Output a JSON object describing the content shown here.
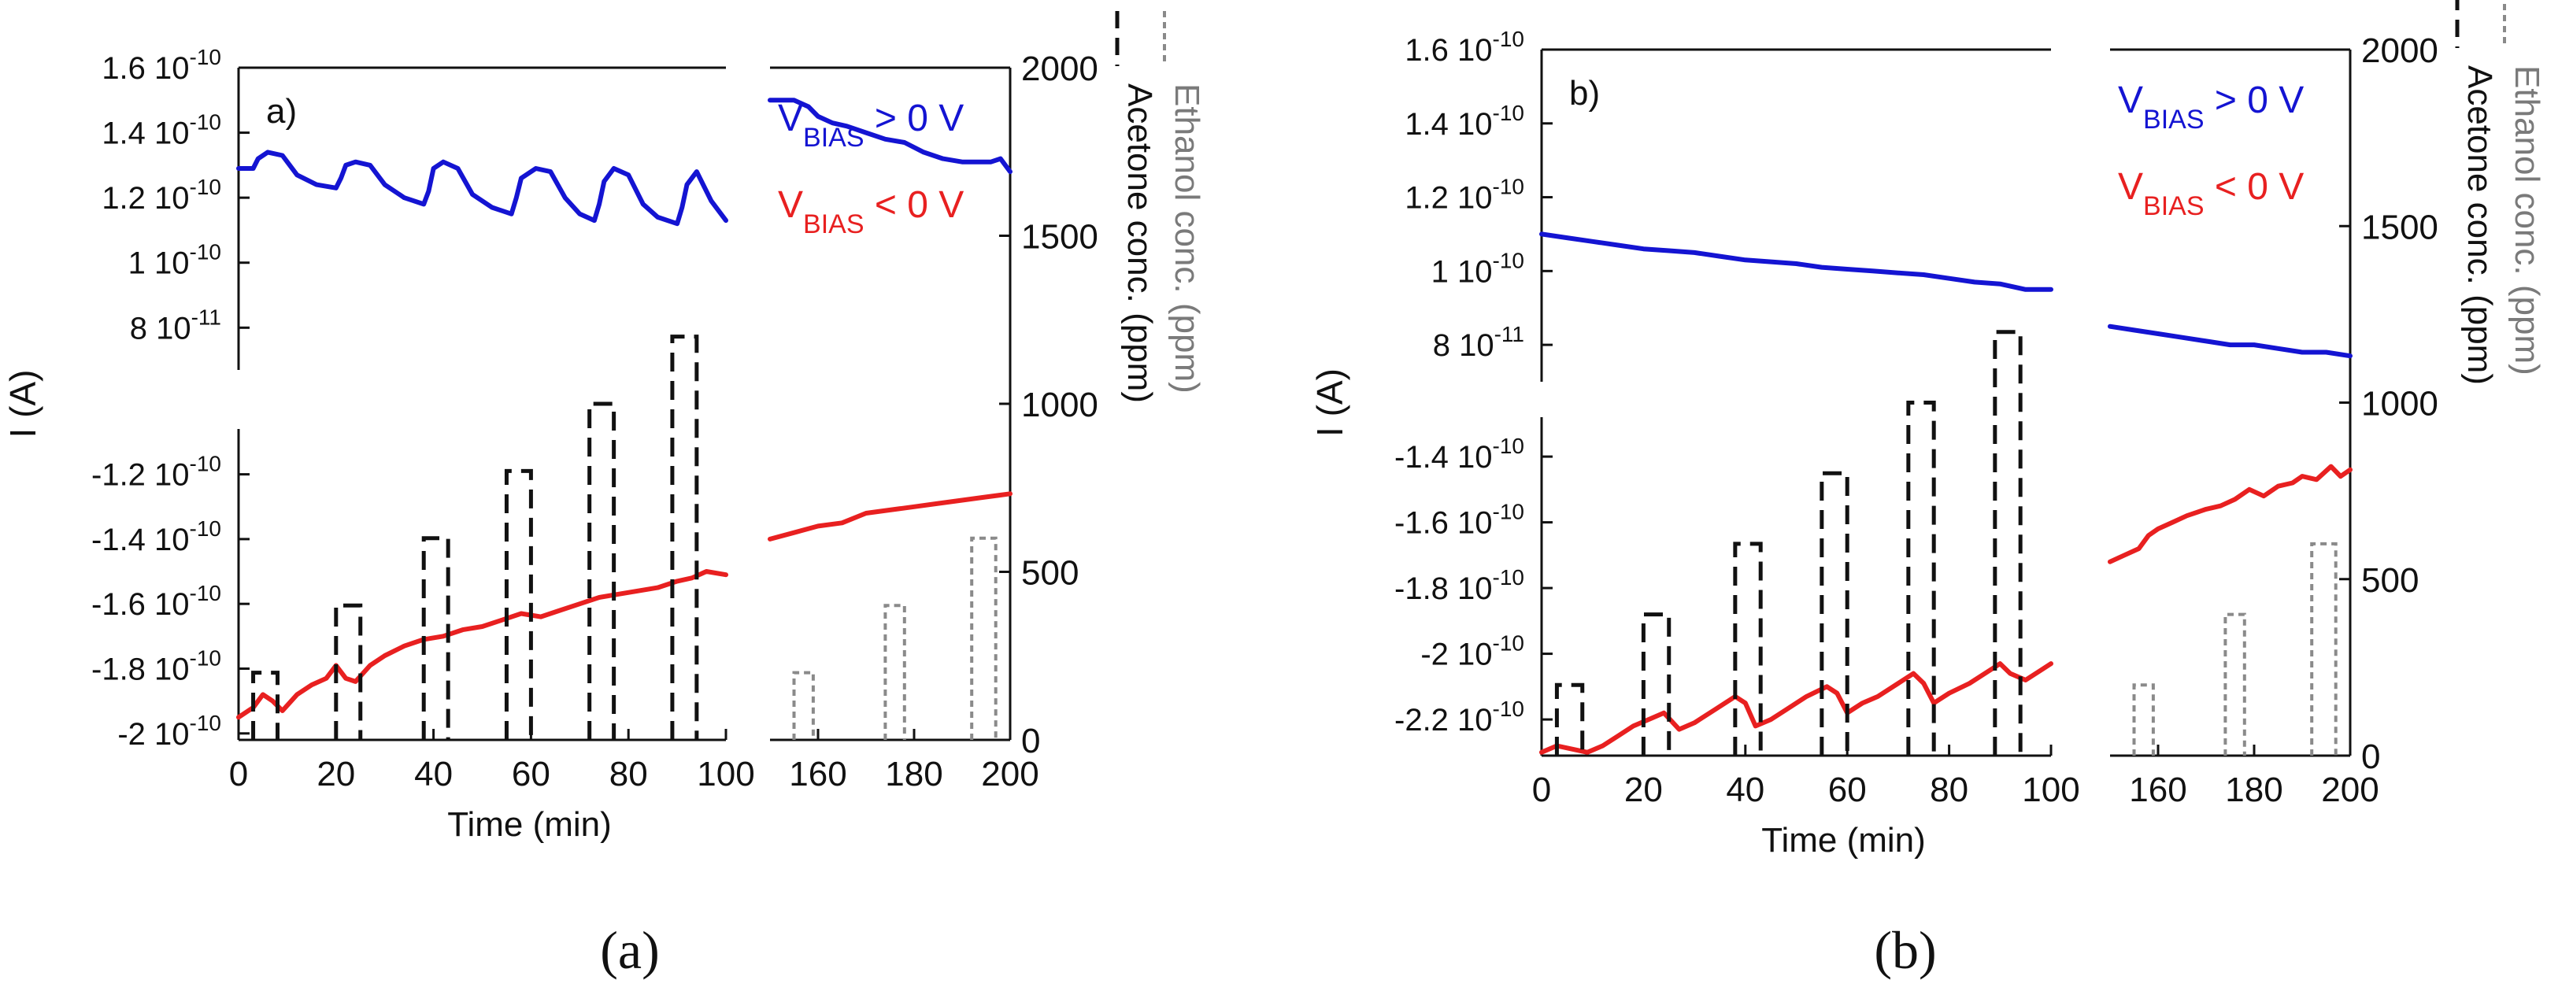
{
  "figure": {
    "captions": [
      "(a)",
      "(b)"
    ]
  },
  "chart_data": [
    {
      "id": "a",
      "type": "line",
      "panel_label": "a)",
      "ylabel": "I (A)",
      "xlabel": "Time (min)",
      "right_axis_labels": [
        "Acetone conc. (ppm)",
        "Ethanol conc. (ppm)"
      ],
      "legend": [
        {
          "main": "V",
          "sub": "BIAS",
          "rest": " > 0 V",
          "color": "#1414d2"
        },
        {
          "main": "V",
          "sub": "BIAS",
          "rest": " < 0 V",
          "color": "#e82020"
        }
      ],
      "colors": {
        "pos": "#1414d2",
        "neg": "#e82020",
        "acetone": "#111111",
        "ethanol": "#8a8a8a"
      },
      "x_left": {
        "range": [
          0,
          100
        ],
        "ticks": [
          "0",
          "20",
          "40",
          "60",
          "80",
          "100"
        ]
      },
      "x_right": {
        "range": [
          150,
          200
        ],
        "ticks": [
          "160",
          "180",
          "200"
        ]
      },
      "y_top": {
        "range": [
          6.7e-11,
          1.6e-10
        ],
        "ticks": [
          {
            "v": 1.6e-10,
            "m": "1.6 10",
            "e": "-10"
          },
          {
            "v": 1.4e-10,
            "m": "1.4 10",
            "e": "-10"
          },
          {
            "v": 1.2e-10,
            "m": "1.2 10",
            "e": "-10"
          },
          {
            "v": 1e-10,
            "m": "1 10",
            "e": "-10"
          },
          {
            "v": 8e-11,
            "m": "8 10",
            "e": "-11"
          }
        ]
      },
      "y_bottom": {
        "range": [
          -2.02e-10,
          -1.06e-10
        ],
        "ticks": [
          {
            "v": -1.2e-10,
            "m": "-1.2 10",
            "e": "-10"
          },
          {
            "v": -1.4e-10,
            "m": "-1.4 10",
            "e": "-10"
          },
          {
            "v": -1.6e-10,
            "m": "-1.6 10",
            "e": "-10"
          },
          {
            "v": -1.8e-10,
            "m": "-1.8 10",
            "e": "-10"
          },
          {
            "v": -2e-10,
            "m": "-2 10",
            "e": "-10"
          }
        ]
      },
      "y_conc": {
        "range": [
          0,
          2000
        ],
        "ticks": [
          "0",
          "500",
          "1000",
          "1500",
          "2000"
        ]
      },
      "series": [
        {
          "name": "V_BIAS > 0 V, acetone",
          "color": "#1414d2",
          "x": [
            0,
            3,
            4,
            6,
            9,
            12,
            16,
            20,
            21,
            22,
            24,
            27,
            30,
            34,
            38,
            39,
            40,
            42,
            45,
            48,
            52,
            56,
            57,
            58,
            61,
            64,
            67,
            70,
            73,
            74,
            75,
            77,
            80,
            83,
            86,
            90,
            91,
            92,
            94,
            97,
            100
          ],
          "y": [
            1.29e-10,
            1.29e-10,
            1.32e-10,
            1.34e-10,
            1.33e-10,
            1.27e-10,
            1.24e-10,
            1.23e-10,
            1.26e-10,
            1.3e-10,
            1.31e-10,
            1.3e-10,
            1.24e-10,
            1.2e-10,
            1.18e-10,
            1.22e-10,
            1.29e-10,
            1.31e-10,
            1.29e-10,
            1.21e-10,
            1.17e-10,
            1.15e-10,
            1.2e-10,
            1.26e-10,
            1.29e-10,
            1.28e-10,
            1.2e-10,
            1.15e-10,
            1.13e-10,
            1.18e-10,
            1.25e-10,
            1.29e-10,
            1.27e-10,
            1.18e-10,
            1.14e-10,
            1.12e-10,
            1.17e-10,
            1.24e-10,
            1.28e-10,
            1.19e-10,
            1.13e-10
          ]
        },
        {
          "name": "V_BIAS < 0 V, acetone",
          "color": "#e82020",
          "x": [
            0,
            3,
            5,
            7,
            9,
            12,
            15,
            18,
            20,
            22,
            24,
            27,
            30,
            34,
            38,
            42,
            46,
            50,
            54,
            58,
            62,
            66,
            70,
            74,
            78,
            82,
            86,
            90,
            93,
            96,
            100
          ],
          "y": [
            -1.95e-10,
            -1.92e-10,
            -1.88e-10,
            -1.9e-10,
            -1.93e-10,
            -1.88e-10,
            -1.85e-10,
            -1.83e-10,
            -1.79e-10,
            -1.83e-10,
            -1.84e-10,
            -1.79e-10,
            -1.76e-10,
            -1.73e-10,
            -1.71e-10,
            -1.7e-10,
            -1.68e-10,
            -1.67e-10,
            -1.65e-10,
            -1.63e-10,
            -1.64e-10,
            -1.62e-10,
            -1.6e-10,
            -1.58e-10,
            -1.57e-10,
            -1.56e-10,
            -1.55e-10,
            -1.53e-10,
            -1.52e-10,
            -1.5e-10,
            -1.51e-10
          ]
        },
        {
          "name": "V_BIAS > 0 V, ethanol",
          "color": "#1414d2",
          "x": [
            150,
            155,
            158,
            160,
            163,
            166,
            170,
            174,
            178,
            182,
            186,
            190,
            193,
            196,
            198,
            200
          ],
          "y": [
            1.5e-10,
            1.5e-10,
            1.48e-10,
            1.45e-10,
            1.43e-10,
            1.42e-10,
            1.4e-10,
            1.38e-10,
            1.37e-10,
            1.34e-10,
            1.32e-10,
            1.31e-10,
            1.31e-10,
            1.31e-10,
            1.32e-10,
            1.28e-10
          ]
        },
        {
          "name": "V_BIAS < 0 V, ethanol",
          "color": "#e82020",
          "x": [
            150,
            155,
            160,
            165,
            170,
            175,
            180,
            185,
            190,
            195,
            200
          ],
          "y": [
            -1.4e-10,
            -1.38e-10,
            -1.36e-10,
            -1.35e-10,
            -1.32e-10,
            -1.31e-10,
            -1.3e-10,
            -1.29e-10,
            -1.28e-10,
            -1.27e-10,
            -1.26e-10
          ]
        },
        {
          "name": "Acetone conc.",
          "color": "#111111",
          "axis": "conc",
          "pulses": [
            {
              "start": 3,
              "end": 8,
              "value": 200
            },
            {
              "start": 20,
              "end": 25,
              "value": 400
            },
            {
              "start": 38,
              "end": 43,
              "value": 600
            },
            {
              "start": 55,
              "end": 60,
              "value": 800
            },
            {
              "start": 72,
              "end": 77,
              "value": 1000
            },
            {
              "start": 89,
              "end": 94,
              "value": 1200
            }
          ]
        },
        {
          "name": "Ethanol conc.",
          "color": "#8a8a8a",
          "axis": "conc",
          "pulses": [
            {
              "start": 155,
              "end": 159,
              "value": 200
            },
            {
              "start": 174,
              "end": 178,
              "value": 400
            },
            {
              "start": 192,
              "end": 197,
              "value": 600
            }
          ]
        }
      ]
    },
    {
      "id": "b",
      "type": "line",
      "panel_label": "b)",
      "ylabel": "I (A)",
      "xlabel": "Time (min)",
      "right_axis_labels": [
        "Acetone conc. (ppm)",
        "Ethanol conc. (ppm)"
      ],
      "legend": [
        {
          "main": "V",
          "sub": "BIAS",
          "rest": " > 0 V",
          "color": "#1414d2"
        },
        {
          "main": "V",
          "sub": "BIAS",
          "rest": " < 0 V",
          "color": "#e82020"
        }
      ],
      "colors": {
        "pos": "#1414d2",
        "neg": "#e82020",
        "acetone": "#111111",
        "ethanol": "#8a8a8a"
      },
      "x_left": {
        "range": [
          0,
          100
        ],
        "ticks": [
          "0",
          "20",
          "40",
          "60",
          "80",
          "100"
        ]
      },
      "x_right": {
        "range": [
          150,
          200
        ],
        "ticks": [
          "160",
          "180",
          "200"
        ]
      },
      "y_top": {
        "range": [
          7e-11,
          1.6e-10
        ],
        "ticks": [
          {
            "v": 1.6e-10,
            "m": "1.6 10",
            "e": "-10"
          },
          {
            "v": 1.4e-10,
            "m": "1.4 10",
            "e": "-10"
          },
          {
            "v": 1.2e-10,
            "m": "1.2 10",
            "e": "-10"
          },
          {
            "v": 1e-10,
            "m": "1 10",
            "e": "-10"
          },
          {
            "v": 8e-11,
            "m": "8 10",
            "e": "-11"
          }
        ]
      },
      "y_bottom": {
        "range": [
          -2.31e-10,
          -1.28e-10
        ],
        "ticks": [
          {
            "v": -1.4e-10,
            "m": "-1.4 10",
            "e": "-10"
          },
          {
            "v": -1.6e-10,
            "m": "-1.6 10",
            "e": "-10"
          },
          {
            "v": -1.8e-10,
            "m": "-1.8 10",
            "e": "-10"
          },
          {
            "v": -2e-10,
            "m": "-2 10",
            "e": "-10"
          },
          {
            "v": -2.2e-10,
            "m": "-2.2 10",
            "e": "-10"
          }
        ]
      },
      "y_conc": {
        "range": [
          0,
          2000
        ],
        "ticks": [
          "0",
          "500",
          "1000",
          "1500",
          "2000"
        ]
      },
      "series": [
        {
          "name": "V_BIAS > 0 V, acetone",
          "color": "#1414d2",
          "x": [
            0,
            5,
            10,
            15,
            20,
            25,
            30,
            35,
            40,
            45,
            50,
            55,
            60,
            65,
            70,
            75,
            80,
            85,
            90,
            95,
            100
          ],
          "y": [
            1.1e-10,
            1.09e-10,
            1.08e-10,
            1.07e-10,
            1.06e-10,
            1.055e-10,
            1.05e-10,
            1.04e-10,
            1.03e-10,
            1.025e-10,
            1.02e-10,
            1.01e-10,
            1.005e-10,
            1e-10,
            9.95e-11,
            9.9e-11,
            9.8e-11,
            9.7e-11,
            9.65e-11,
            9.5e-11,
            9.5e-11
          ]
        },
        {
          "name": "V_BIAS < 0 V, acetone",
          "color": "#e82020",
          "x": [
            0,
            3,
            6,
            9,
            12,
            15,
            18,
            21,
            24,
            27,
            30,
            34,
            38,
            40,
            42,
            45,
            48,
            52,
            56,
            58,
            60,
            63,
            66,
            70,
            73,
            75,
            77,
            80,
            84,
            88,
            90,
            92,
            95,
            98,
            100
          ],
          "y": [
            -2.3e-10,
            -2.28e-10,
            -2.29e-10,
            -2.3e-10,
            -2.28e-10,
            -2.25e-10,
            -2.22e-10,
            -2.2e-10,
            -2.18e-10,
            -2.23e-10,
            -2.21e-10,
            -2.17e-10,
            -2.13e-10,
            -2.15e-10,
            -2.22e-10,
            -2.2e-10,
            -2.17e-10,
            -2.13e-10,
            -2.1e-10,
            -2.12e-10,
            -2.18e-10,
            -2.15e-10,
            -2.13e-10,
            -2.09e-10,
            -2.06e-10,
            -2.09e-10,
            -2.15e-10,
            -2.12e-10,
            -2.09e-10,
            -2.05e-10,
            -2.03e-10,
            -2.06e-10,
            -2.08e-10,
            -2.05e-10,
            -2.03e-10
          ]
        },
        {
          "name": "V_BIAS > 0 V, ethanol",
          "color": "#1414d2",
          "x": [
            150,
            155,
            160,
            165,
            170,
            175,
            180,
            185,
            190,
            195,
            200
          ],
          "y": [
            8.5e-11,
            8.4e-11,
            8.3e-11,
            8.2e-11,
            8.1e-11,
            8e-11,
            8e-11,
            7.9e-11,
            7.8e-11,
            7.8e-11,
            7.7e-11
          ]
        },
        {
          "name": "V_BIAS < 0 V, ethanol",
          "color": "#e82020",
          "x": [
            150,
            153,
            156,
            158,
            160,
            163,
            166,
            170,
            173,
            176,
            179,
            182,
            185,
            188,
            190,
            193,
            196,
            198,
            200
          ],
          "y": [
            -1.72e-10,
            -1.7e-10,
            -1.68e-10,
            -1.64e-10,
            -1.62e-10,
            -1.6e-10,
            -1.58e-10,
            -1.56e-10,
            -1.55e-10,
            -1.53e-10,
            -1.5e-10,
            -1.52e-10,
            -1.49e-10,
            -1.48e-10,
            -1.46e-10,
            -1.47e-10,
            -1.43e-10,
            -1.46e-10,
            -1.44e-10
          ]
        },
        {
          "name": "Acetone conc.",
          "color": "#111111",
          "axis": "conc",
          "pulses": [
            {
              "start": 3,
              "end": 8,
              "value": 200
            },
            {
              "start": 20,
              "end": 25,
              "value": 400
            },
            {
              "start": 38,
              "end": 43,
              "value": 600
            },
            {
              "start": 55,
              "end": 60,
              "value": 800
            },
            {
              "start": 72,
              "end": 77,
              "value": 1000
            },
            {
              "start": 89,
              "end": 94,
              "value": 1200
            }
          ]
        },
        {
          "name": "Ethanol conc.",
          "color": "#8a8a8a",
          "axis": "conc",
          "pulses": [
            {
              "start": 155,
              "end": 159,
              "value": 200
            },
            {
              "start": 174,
              "end": 178,
              "value": 400
            },
            {
              "start": 192,
              "end": 197,
              "value": 600
            }
          ]
        }
      ]
    }
  ]
}
